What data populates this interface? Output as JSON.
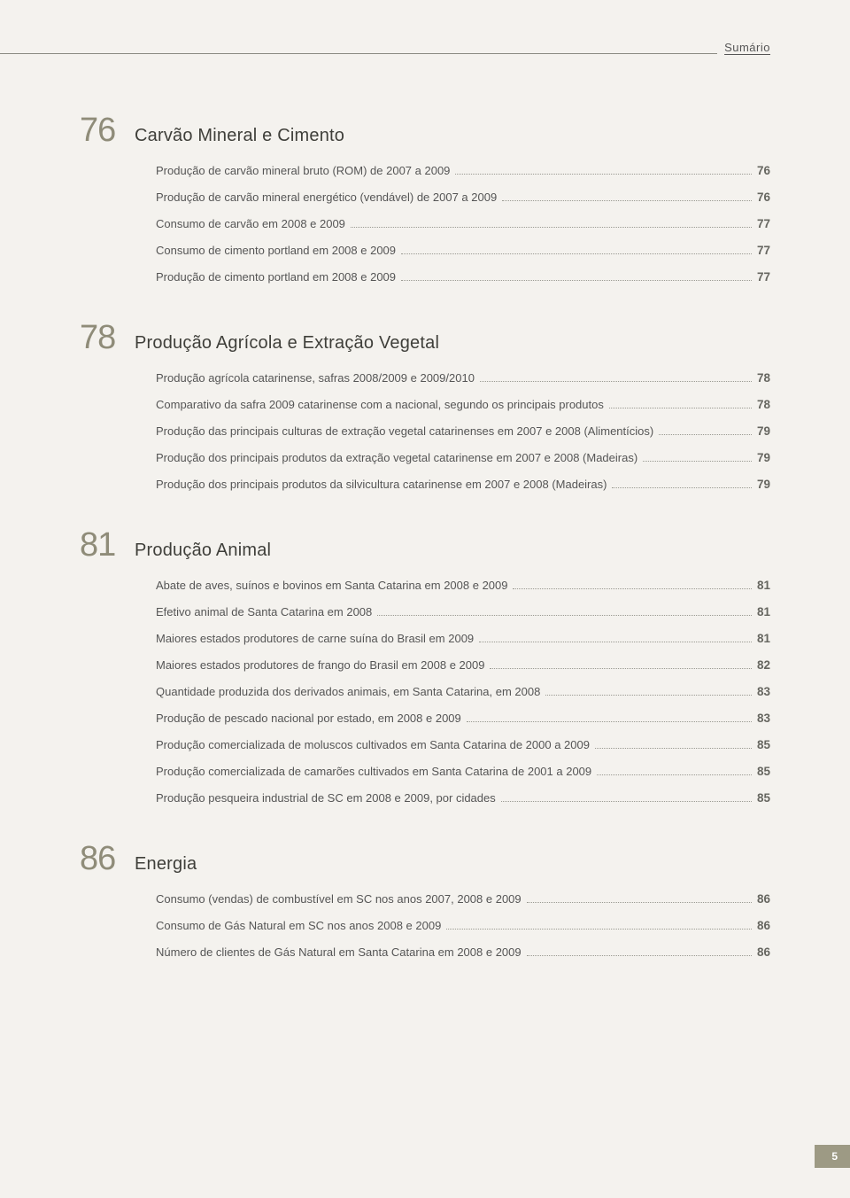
{
  "header": {
    "label": "Sumário"
  },
  "sections": [
    {
      "number": "76",
      "title": "Carvão Mineral e Cimento",
      "entries": [
        {
          "label": "Produção de carvão mineral bruto (ROM) de 2007 a 2009",
          "page": "76"
        },
        {
          "label": "Produção de carvão mineral energético (vendável) de 2007 a 2009",
          "page": "76"
        },
        {
          "label": "Consumo de carvão em 2008 e 2009",
          "page": "77"
        },
        {
          "label": "Consumo de cimento portland em 2008 e 2009",
          "page": "77"
        },
        {
          "label": "Produção de cimento portland em 2008 e 2009",
          "page": "77"
        }
      ]
    },
    {
      "number": "78",
      "title": "Produção Agrícola e Extração Vegetal",
      "entries": [
        {
          "label": "Produção agrícola catarinense, safras 2008/2009 e 2009/2010",
          "page": "78"
        },
        {
          "label": "Comparativo da safra 2009 catarinense com a nacional, segundo os principais produtos",
          "page": "78"
        },
        {
          "label": "Produção das principais culturas de extração vegetal catarinenses em 2007 e 2008 (Alimentícios)",
          "page": "79"
        },
        {
          "label": "Produção dos principais produtos da extração vegetal catarinense em 2007 e 2008 (Madeiras)",
          "page": "79"
        },
        {
          "label": "Produção dos principais produtos da silvicultura catarinense em 2007 e 2008 (Madeiras)",
          "page": "79"
        }
      ]
    },
    {
      "number": "81",
      "title": "Produção Animal",
      "entries": [
        {
          "label": "Abate de aves, suínos e bovinos em Santa Catarina em 2008 e 2009",
          "page": "81"
        },
        {
          "label": "Efetivo animal de Santa Catarina em 2008",
          "page": "81"
        },
        {
          "label": "Maiores estados produtores de carne suína do Brasil em 2009",
          "page": "81"
        },
        {
          "label": "Maiores estados produtores de frango do Brasil em 2008 e 2009",
          "page": "82"
        },
        {
          "label": "Quantidade produzida dos derivados animais, em Santa Catarina, em 2008",
          "page": "83"
        },
        {
          "label": "Produção de pescado nacional por estado, em 2008 e 2009",
          "page": "83"
        },
        {
          "label": "Produção comercializada de moluscos cultivados em Santa Catarina de 2000 a 2009",
          "page": "85"
        },
        {
          "label": "Produção comercializada de camarões cultivados em Santa Catarina de 2001 a 2009",
          "page": "85"
        },
        {
          "label": "Produção pesqueira industrial de SC em 2008 e 2009, por cidades",
          "page": "85"
        }
      ]
    },
    {
      "number": "86",
      "title": "Energia",
      "entries": [
        {
          "label": "Consumo (vendas) de combustível em SC nos anos 2007, 2008 e 2009",
          "page": "86"
        },
        {
          "label": "Consumo de Gás Natural em SC nos anos 2008 e 2009",
          "page": "86"
        },
        {
          "label": "Número de clientes de Gás Natural em Santa Catarina em 2008 e 2009",
          "page": "86"
        }
      ]
    }
  ],
  "footer": {
    "page_number": "5"
  },
  "style": {
    "background_color": "#f4f2ee",
    "section_number_color": "#8f8c79",
    "text_color": "#555555",
    "page_number_bg": "#9d9a84"
  }
}
